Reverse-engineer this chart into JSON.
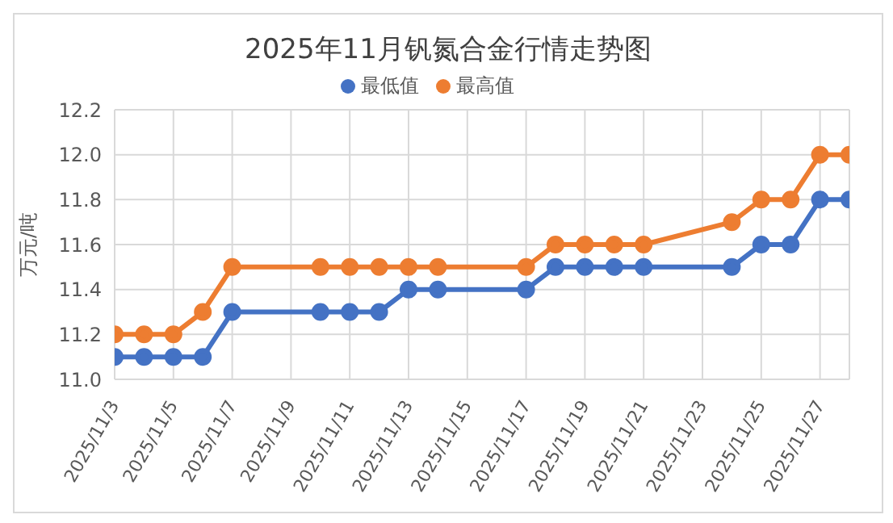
{
  "chart_data": {
    "type": "line",
    "title": "2025年11月钒氮合金行情走势图",
    "ylabel": "万元/吨",
    "x": [
      "2025-11-03",
      "2025-11-04",
      "2025-11-05",
      "2025-11-06",
      "2025-11-07",
      "2025-11-10",
      "2025-11-11",
      "2025-11-12",
      "2025-11-13",
      "2025-11-14",
      "2025-11-17",
      "2025-11-18",
      "2025-11-19",
      "2025-11-20",
      "2025-11-21",
      "2025-11-24",
      "2025-11-25",
      "2025-11-26",
      "2025-11-27",
      "2025-11-28"
    ],
    "series": [
      {
        "name": "最低值",
        "color": "#4472c4",
        "values": [
          11.1,
          11.1,
          11.1,
          11.1,
          11.3,
          11.3,
          11.3,
          11.3,
          11.4,
          11.4,
          11.4,
          11.5,
          11.5,
          11.5,
          11.5,
          11.5,
          11.6,
          11.6,
          11.8,
          11.8
        ]
      },
      {
        "name": "最高值",
        "color": "#ed7d31",
        "values": [
          11.2,
          11.2,
          11.2,
          11.3,
          11.5,
          11.5,
          11.5,
          11.5,
          11.5,
          11.5,
          11.5,
          11.6,
          11.6,
          11.6,
          11.6,
          11.7,
          11.8,
          11.8,
          12.0,
          12.0
        ]
      }
    ],
    "xlim": [
      "2025-11-03",
      "2025-11-28"
    ],
    "xticks": [
      {
        "value": "2025-11-03",
        "label": "2025/11/3"
      },
      {
        "value": "2025-11-05",
        "label": "2025/11/5"
      },
      {
        "value": "2025-11-07",
        "label": "2025/11/7"
      },
      {
        "value": "2025-11-09",
        "label": "2025/11/9"
      },
      {
        "value": "2025-11-11",
        "label": "2025/11/11"
      },
      {
        "value": "2025-11-13",
        "label": "2025/11/13"
      },
      {
        "value": "2025-11-15",
        "label": "2025/11/15"
      },
      {
        "value": "2025-11-17",
        "label": "2025/11/17"
      },
      {
        "value": "2025-11-19",
        "label": "2025/11/19"
      },
      {
        "value": "2025-11-21",
        "label": "2025/11/21"
      },
      {
        "value": "2025-11-23",
        "label": "2025/11/23"
      },
      {
        "value": "2025-11-25",
        "label": "2025/11/25"
      },
      {
        "value": "2025-11-27",
        "label": "2025/11/27"
      }
    ],
    "ylim": [
      11.0,
      12.2
    ],
    "yticks": [
      {
        "value": 11.0,
        "label": "11.0"
      },
      11.2,
      11.4,
      11.6,
      11.8,
      {
        "value": 12.0,
        "label": "12.0"
      },
      12.2
    ],
    "grid": true,
    "legend": "top",
    "marker": "circle",
    "line_style": "solid"
  }
}
